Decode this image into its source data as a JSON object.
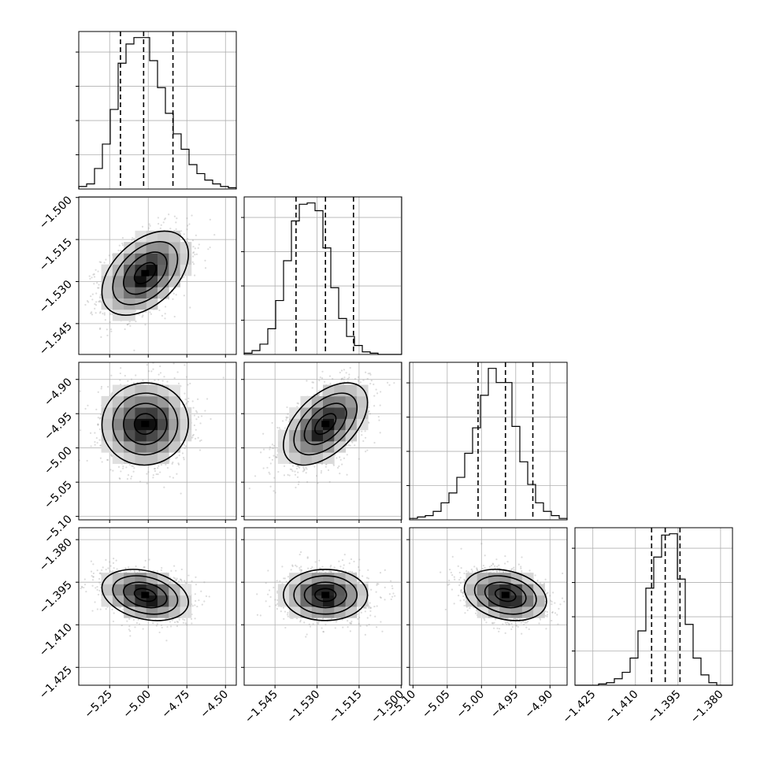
{
  "chart_data": {
    "type": "corner",
    "title": "",
    "grid": true,
    "parameters": [
      {
        "index": 0,
        "median": -5.03,
        "quantiles": [
          -5.18,
          -5.03,
          -4.84
        ],
        "range": [
          -5.45,
          -4.43
        ],
        "ticks": [
          -5.25,
          -5.0,
          -4.75,
          -4.5
        ],
        "tick_labels": [
          "−5.25",
          "−5.00",
          "−4.75",
          "−4.50"
        ]
      },
      {
        "index": 1,
        "median": -1.527,
        "quantiles": [
          -1.5375,
          -1.527,
          -1.517
        ],
        "range": [
          -1.556,
          -1.4998
        ],
        "ticks": [
          -1.545,
          -1.53,
          -1.515,
          -1.5
        ],
        "tick_labels": [
          "−1.545",
          "−1.530",
          "−1.515",
          "−1.500"
        ]
      },
      {
        "index": 2,
        "median": -4.965,
        "quantiles": [
          -5.005,
          -4.965,
          -4.925
        ],
        "range": [
          -5.105,
          -4.875
        ],
        "ticks": [
          -5.1,
          -5.05,
          -5.0,
          -4.95,
          -4.9
        ],
        "tick_labels": [
          "−5.10",
          "−5.05",
          "−5.00",
          "−4.95",
          "−4.90"
        ]
      },
      {
        "index": 3,
        "median": -1.3995,
        "quantiles": [
          -1.4043,
          -1.3995,
          -1.3943
        ],
        "range": [
          -1.4313,
          -1.3758
        ],
        "ticks": [
          -1.425,
          -1.41,
          -1.395,
          -1.38
        ],
        "tick_labels": [
          "−1.425",
          "−1.410",
          "−1.395",
          "−1.380"
        ]
      }
    ],
    "histograms": [
      {
        "param": 0,
        "counts": [
          2,
          4,
          16,
          35,
          62,
          98,
          113,
          118,
          118,
          100,
          79,
          59,
          43,
          31,
          19,
          12,
          7,
          4,
          2,
          1
        ]
      },
      {
        "param": 1,
        "counts": [
          1,
          3,
          8,
          20,
          42,
          73,
          104,
          117,
          118,
          112,
          83,
          52,
          28,
          14,
          7,
          2,
          1,
          0,
          0,
          0
        ]
      },
      {
        "param": 2,
        "counts": [
          1,
          2,
          3,
          6,
          12,
          19,
          30,
          47,
          65,
          88,
          107,
          97,
          97,
          66,
          41,
          25,
          12,
          6,
          3,
          1
        ]
      },
      {
        "param": 3,
        "counts": [
          0,
          0,
          0,
          1,
          2,
          5,
          10,
          21,
          42,
          75,
          99,
          116,
          117,
          82,
          47,
          21,
          8,
          2,
          0,
          0
        ]
      }
    ],
    "pairs": [
      {
        "x": 0,
        "y": 1,
        "mean": [
          -5.02,
          -1.527
        ],
        "sigma": [
          0.14,
          0.0075
        ],
        "rho": 0.45
      },
      {
        "x": 0,
        "y": 2,
        "mean": [
          -5.02,
          -4.965
        ],
        "sigma": [
          0.14,
          0.03
        ],
        "rho": 0.02
      },
      {
        "x": 1,
        "y": 2,
        "mean": [
          -1.527,
          -4.965
        ],
        "sigma": [
          0.0075,
          0.03
        ],
        "rho": 0.52
      },
      {
        "x": 0,
        "y": 3,
        "mean": [
          -5.02,
          -1.3995
        ],
        "sigma": [
          0.14,
          0.0045
        ],
        "rho": -0.28
      },
      {
        "x": 1,
        "y": 3,
        "mean": [
          -1.527,
          -1.3995
        ],
        "sigma": [
          0.0075,
          0.0045
        ],
        "rho": 0.0
      },
      {
        "x": 2,
        "y": 3,
        "mean": [
          -4.965,
          -1.3995
        ],
        "sigma": [
          0.03,
          0.0045
        ],
        "rho": -0.25
      }
    ],
    "contour_levels_sigma": [
      0.5,
      1.0,
      1.5,
      2.0
    ]
  }
}
